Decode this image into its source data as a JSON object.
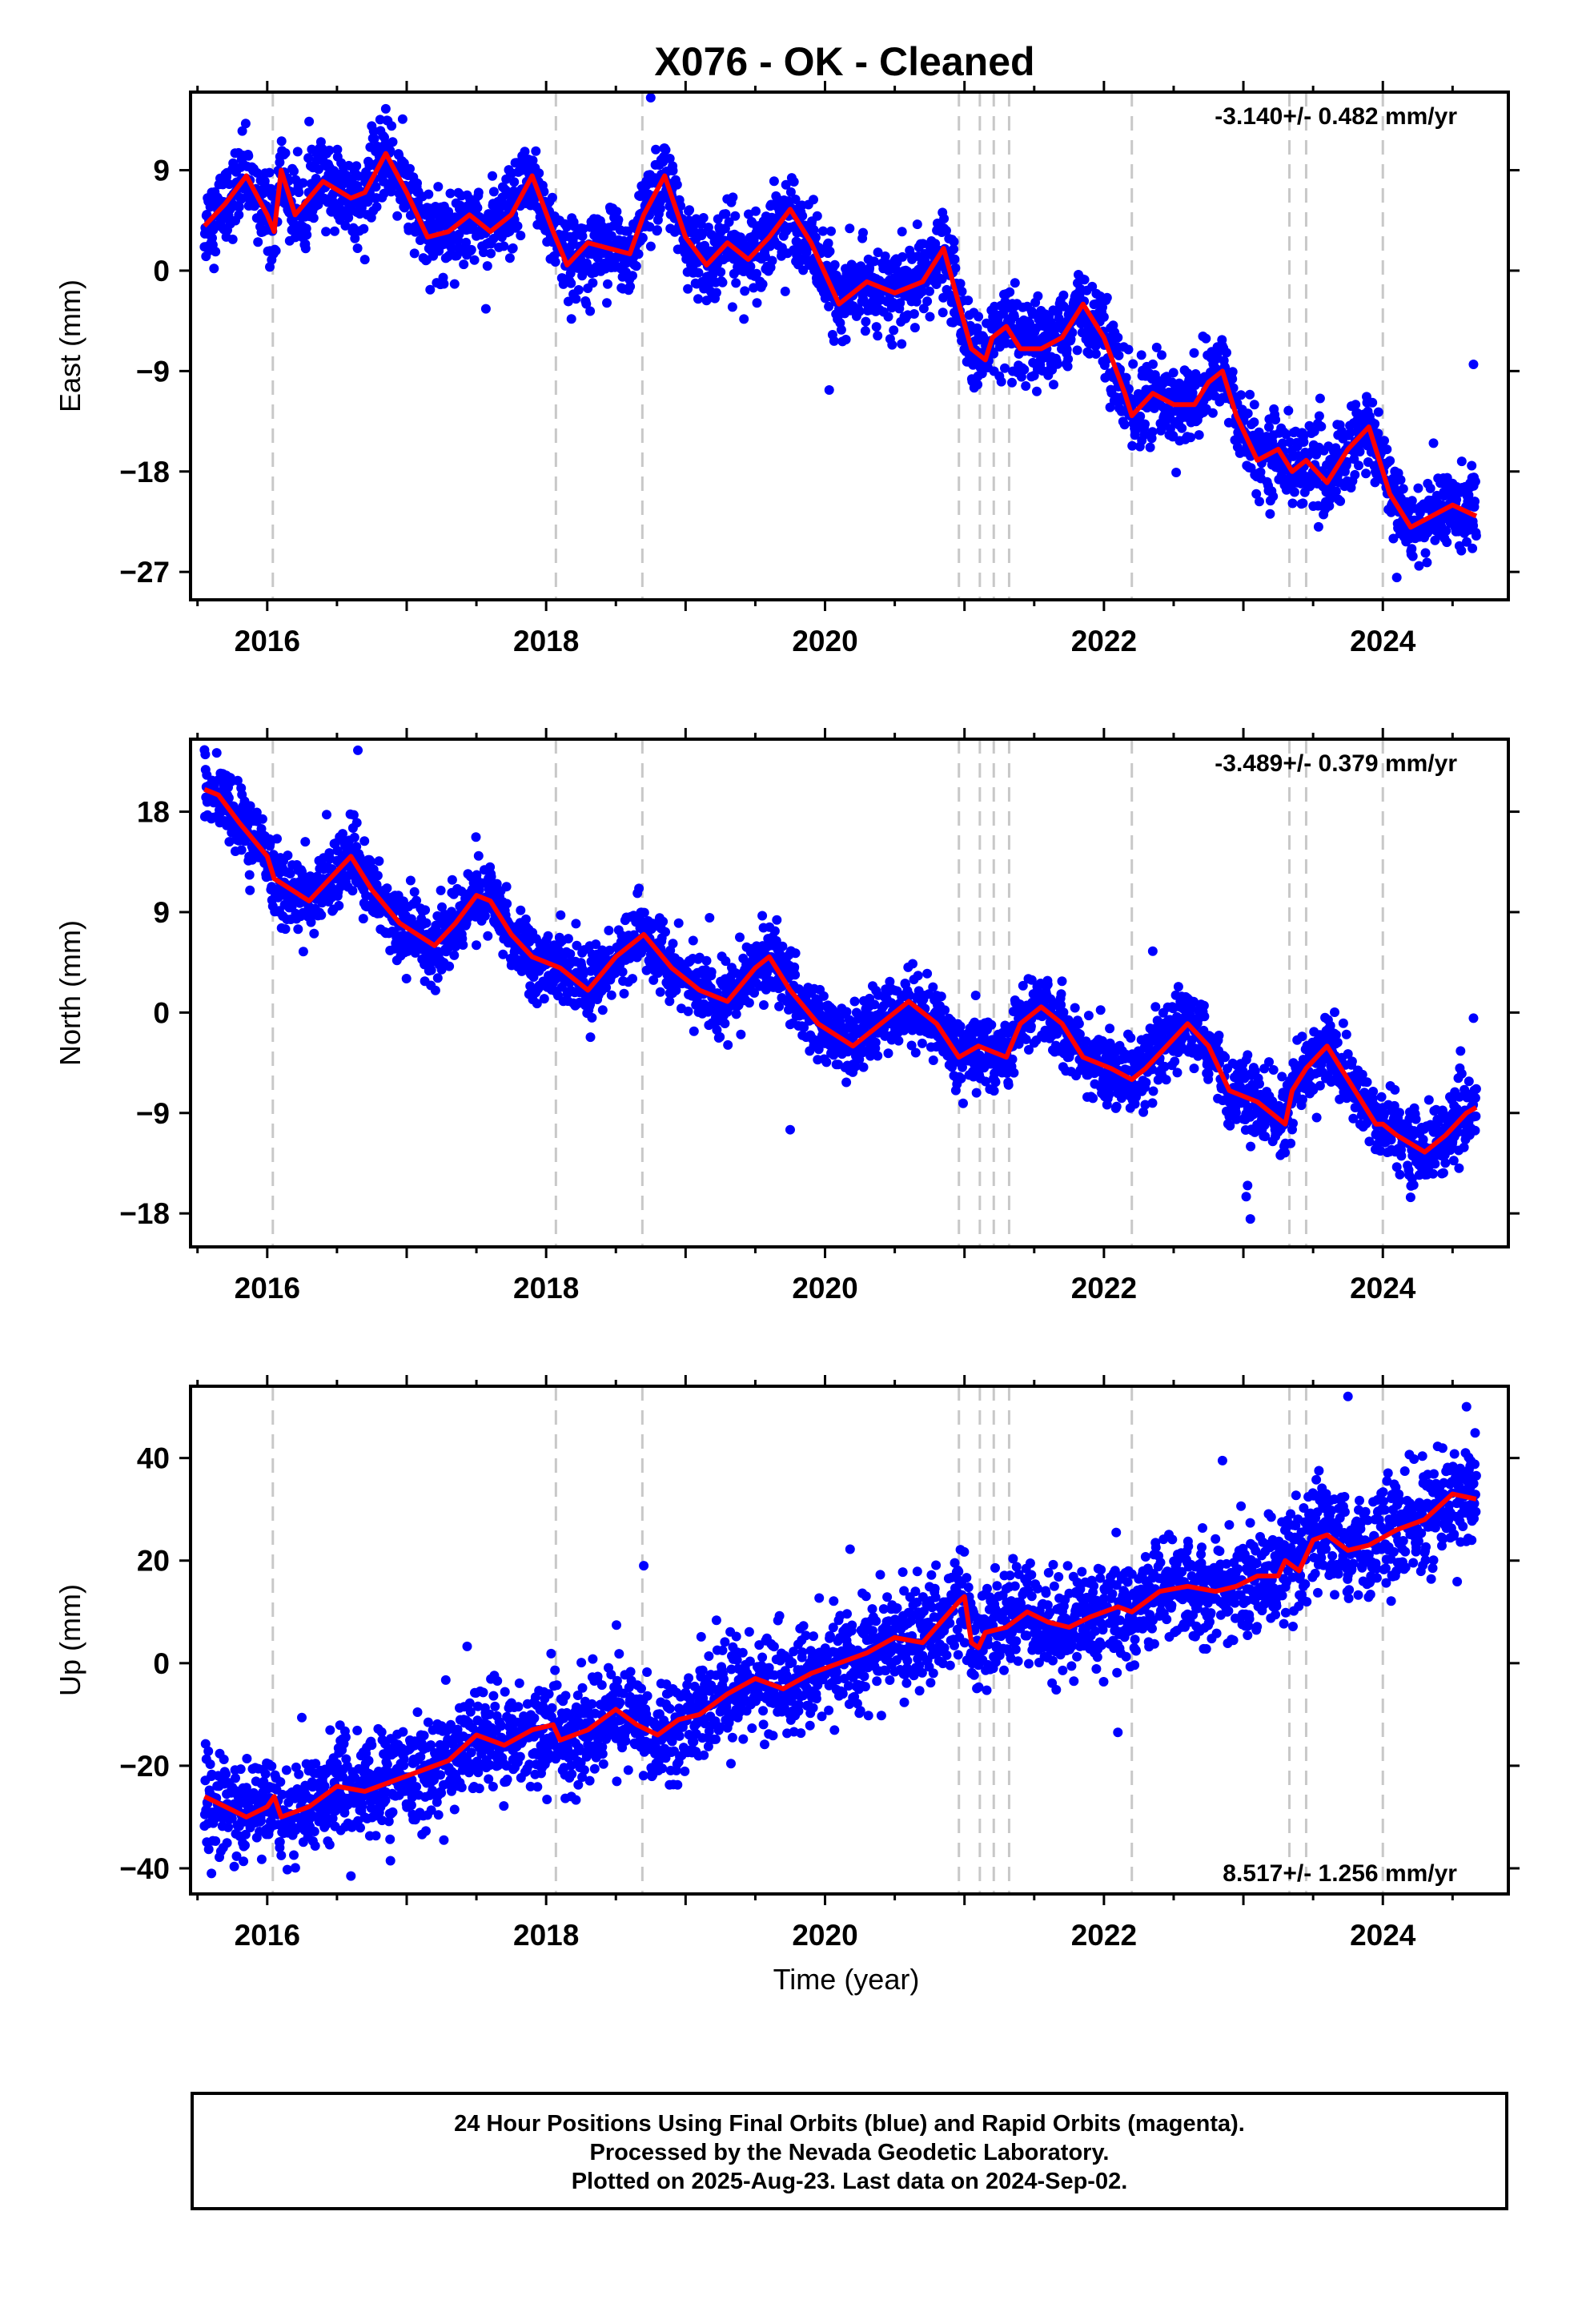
{
  "title": "X076  - OK - Cleaned",
  "x_axis": {
    "label": "Time (year)",
    "ticks": [
      "2016",
      "2018",
      "2020",
      "2022",
      "2024"
    ]
  },
  "colors": {
    "points": "#0000ff",
    "model": "#ff0000",
    "breaks": "#c8c8c8",
    "axis": "#000000"
  },
  "caption": {
    "line1": "24 Hour Positions Using Final Orbits (blue) and Rapid Orbits (magenta).",
    "line2": "Processed by the Nevada Geodetic Laboratory.",
    "line3": "Plotted on 2025-Aug-23. Last data on 2024-Sep-02."
  },
  "chart_data": [
    {
      "type": "scatter",
      "panel": "east",
      "ylabel": "East (mm)",
      "rate": "-3.140+/- 0.482 mm/yr",
      "rate_position": "top-right",
      "xlim": [
        2015.45,
        2024.9
      ],
      "ylim": [
        -29.5,
        16
      ],
      "yticks": [
        9,
        0,
        -9,
        -18,
        -27
      ],
      "ytick_labels": [
        "9",
        "0",
        "−9",
        "−18",
        "−27"
      ],
      "x_range": [
        2015.55,
        2024.67
      ],
      "trend": {
        "a": 3.6,
        "slope": -3.14,
        "t0": 2015.55
      },
      "seasonal": {
        "amp": 3.5,
        "phase": 2.8
      },
      "scatter_sd": 1.8,
      "model": {
        "x": [
          2015.55,
          2015.7,
          2015.85,
          2016.0,
          2016.05,
          2016.1,
          2016.2,
          2016.4,
          2016.6,
          2016.7,
          2016.85,
          2017.0,
          2017.15,
          2017.3,
          2017.45,
          2017.6,
          2017.75,
          2017.9,
          2018.05,
          2018.15,
          2018.3,
          2018.45,
          2018.6,
          2018.7,
          2018.85,
          2019.0,
          2019.15,
          2019.3,
          2019.45,
          2019.6,
          2019.75,
          2019.9,
          2020.1,
          2020.3,
          2020.5,
          2020.7,
          2020.85,
          2020.96,
          2021.05,
          2021.15,
          2021.2,
          2021.3,
          2021.4,
          2021.55,
          2021.7,
          2021.85,
          2022.0,
          2022.15,
          2022.2,
          2022.35,
          2022.5,
          2022.65,
          2022.75,
          2022.85,
          2022.95,
          2023.1,
          2023.25,
          2023.35,
          2023.45,
          2023.6,
          2023.75,
          2023.9,
          2024.05,
          2024.2,
          2024.35,
          2024.5,
          2024.67
        ],
        "y": [
          4,
          6,
          8.5,
          5,
          3.5,
          9,
          5,
          8,
          6.5,
          7,
          10.5,
          7,
          3,
          3.5,
          5,
          3.5,
          5,
          8.5,
          3.5,
          0.5,
          2.5,
          2,
          1.5,
          5,
          8.5,
          3,
          0.5,
          2.5,
          1,
          3,
          5.5,
          2.5,
          -3,
          -1,
          -2,
          -1,
          2,
          -3,
          -7,
          -8,
          -6,
          -5,
          -7,
          -7,
          -6,
          -3,
          -6,
          -11,
          -13,
          -11,
          -12,
          -12,
          -10,
          -9,
          -13,
          -17,
          -16,
          -18,
          -17,
          -19,
          -16,
          -14,
          -20,
          -23,
          -22,
          -21,
          -22
        ]
      },
      "outliers": [
        {
          "x": 2020.03,
          "y": -10.7
        },
        {
          "x": 2018.75,
          "y": 15.5
        },
        {
          "x": 2016.85,
          "y": 14.5
        },
        {
          "x": 2024.1,
          "y": -27.5
        },
        {
          "x": 2024.65,
          "y": -8.4
        },
        {
          "x": 2022.1,
          "y": -6
        }
      ]
    },
    {
      "type": "scatter",
      "panel": "north",
      "ylabel": "North (mm)",
      "rate": "-3.489+/- 0.379 mm/yr",
      "rate_position": "top-right",
      "xlim": [
        2015.45,
        2024.9
      ],
      "ylim": [
        -21,
        24.5
      ],
      "yticks": [
        18,
        9,
        0,
        -9,
        -18
      ],
      "ytick_labels": [
        "18",
        "9",
        "0",
        "−9",
        "−18"
      ],
      "x_range": [
        2015.55,
        2024.67
      ],
      "trend": {
        "a": 18,
        "slope": -3.489,
        "t0": 2015.55
      },
      "seasonal": {
        "amp": 3.5,
        "phase": 0.2
      },
      "scatter_sd": 1.6,
      "model": {
        "x": [
          2015.55,
          2015.65,
          2015.8,
          2016.0,
          2016.05,
          2016.3,
          2016.45,
          2016.6,
          2016.75,
          2016.95,
          2017.2,
          2017.35,
          2017.5,
          2017.6,
          2017.75,
          2017.9,
          2018.1,
          2018.3,
          2018.5,
          2018.65,
          2018.7,
          2018.9,
          2019.1,
          2019.3,
          2019.5,
          2019.6,
          2019.75,
          2019.95,
          2020.2,
          2020.4,
          2020.6,
          2020.8,
          2020.96,
          2021.1,
          2021.3,
          2021.4,
          2021.55,
          2021.7,
          2021.85,
          2022.05,
          2022.2,
          2022.3,
          2022.45,
          2022.6,
          2022.75,
          2022.9,
          2023.1,
          2023.3,
          2023.35,
          2023.45,
          2023.6,
          2023.75,
          2023.95,
          2024.0,
          2024.1,
          2024.3,
          2024.45,
          2024.6,
          2024.67
        ],
        "y": [
          20,
          19.5,
          17,
          14,
          12,
          10,
          12,
          14,
          11,
          8,
          6,
          8,
          10.5,
          10,
          7,
          5,
          4,
          2,
          5,
          6.5,
          7,
          4,
          2,
          1,
          4,
          5,
          2,
          -1,
          -3,
          -1,
          1,
          -1,
          -4,
          -3,
          -4,
          -1,
          0.5,
          -1,
          -4,
          -5,
          -6,
          -5,
          -3,
          -1,
          -3,
          -7,
          -8,
          -10,
          -7,
          -5,
          -3,
          -6,
          -10,
          -10,
          -11,
          -12.5,
          -11,
          -9,
          -8.5
        ]
      },
      "outliers": [
        {
          "x": 2023.05,
          "y": -18.5
        },
        {
          "x": 2023.03,
          "y": -15.5
        },
        {
          "x": 2023.02,
          "y": -16.5
        },
        {
          "x": 2016.65,
          "y": 23.5
        },
        {
          "x": 2019.75,
          "y": -10.5
        },
        {
          "x": 2024.65,
          "y": -0.5
        },
        {
          "x": 2022.35,
          "y": 5.5
        }
      ]
    },
    {
      "type": "scatter",
      "panel": "up",
      "ylabel": "Up (mm)",
      "rate": "8.517+/- 1.256 mm/yr",
      "rate_position": "bottom-right",
      "xlim": [
        2015.45,
        2024.9
      ],
      "ylim": [
        -45,
        54
      ],
      "yticks": [
        40,
        20,
        0,
        -20,
        -40
      ],
      "ytick_labels": [
        "40",
        "20",
        "0",
        "−20",
        "−40"
      ],
      "x_range": [
        2015.55,
        2024.67
      ],
      "trend": {
        "a": -27,
        "slope": 8.517,
        "t0": 2015.55
      },
      "seasonal": {
        "amp": 3,
        "phase": 1.2
      },
      "scatter_sd": 5,
      "model": {
        "x": [
          2015.55,
          2015.7,
          2015.85,
          2016.0,
          2016.05,
          2016.1,
          2016.3,
          2016.5,
          2016.7,
          2016.9,
          2017.1,
          2017.3,
          2017.5,
          2017.7,
          2017.9,
          2018.05,
          2018.1,
          2018.3,
          2018.5,
          2018.65,
          2018.8,
          2018.95,
          2019.1,
          2019.3,
          2019.5,
          2019.7,
          2019.9,
          2020.1,
          2020.3,
          2020.5,
          2020.7,
          2020.96,
          2021.0,
          2021.05,
          2021.1,
          2021.15,
          2021.3,
          2021.45,
          2021.6,
          2021.75,
          2021.9,
          2022.1,
          2022.2,
          2022.4,
          2022.6,
          2022.8,
          2022.95,
          2023.1,
          2023.25,
          2023.3,
          2023.4,
          2023.5,
          2023.6,
          2023.75,
          2023.9,
          2024.1,
          2024.3,
          2024.5,
          2024.67
        ],
        "y": [
          -26,
          -28,
          -30,
          -28,
          -26,
          -30,
          -28,
          -24,
          -25,
          -23,
          -21,
          -19,
          -14,
          -16,
          -13,
          -12,
          -15,
          -13,
          -9,
          -12,
          -14,
          -11,
          -10,
          -6,
          -3,
          -5,
          -2,
          0,
          2,
          5,
          4,
          12,
          13,
          4,
          3,
          6,
          7,
          10,
          8,
          7,
          9,
          11,
          10,
          14,
          15,
          14,
          15,
          17,
          17,
          20,
          18,
          24,
          25,
          22,
          23,
          26,
          28,
          33,
          32
        ]
      },
      "outliers": [
        {
          "x": 2023.75,
          "y": 52
        },
        {
          "x": 2016.6,
          "y": -41.5
        },
        {
          "x": 2018.7,
          "y": 19
        },
        {
          "x": 2022.1,
          "y": -13.5
        },
        {
          "x": 2024.6,
          "y": 50
        },
        {
          "x": 2022.85,
          "y": 39.5
        },
        {
          "x": 2015.6,
          "y": -41
        }
      ]
    }
  ],
  "break_lines": [
    2016.04,
    2018.07,
    2018.69,
    2020.96,
    2021.11,
    2021.21,
    2021.32,
    2022.2,
    2023.33,
    2023.45,
    2024.0
  ]
}
